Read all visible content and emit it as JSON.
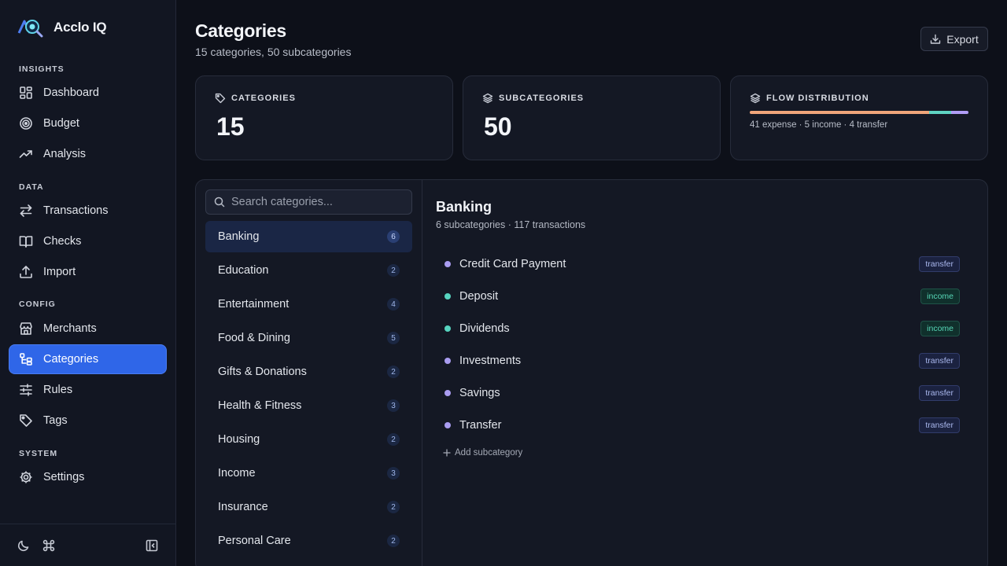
{
  "app": {
    "name": "Acclo IQ"
  },
  "sidebar": {
    "sections": [
      {
        "label": "INSIGHTS"
      },
      {
        "label": "DATA"
      },
      {
        "label": "CONFIG"
      },
      {
        "label": "SYSTEM"
      }
    ],
    "items": [
      {
        "label": "Dashboard",
        "icon": "dashboard-icon"
      },
      {
        "label": "Budget",
        "icon": "target-icon"
      },
      {
        "label": "Analysis",
        "icon": "trending-up-icon"
      },
      {
        "label": "Transactions",
        "icon": "arrows-swap-icon"
      },
      {
        "label": "Checks",
        "icon": "book-open-icon"
      },
      {
        "label": "Import",
        "icon": "upload-icon"
      },
      {
        "label": "Merchants",
        "icon": "store-icon"
      },
      {
        "label": "Categories",
        "icon": "category-tree-icon",
        "active": true
      },
      {
        "label": "Rules",
        "icon": "sliders-icon"
      },
      {
        "label": "Tags",
        "icon": "tag-icon"
      },
      {
        "label": "Settings",
        "icon": "gear-icon"
      }
    ],
    "footer": {
      "theme_icon": "moon-icon",
      "command_icon": "command-icon",
      "collapse_icon": "sidebar-collapse-icon"
    }
  },
  "header": {
    "title": "Categories",
    "subtitle": "15 categories, 50 subcategories",
    "export_label": "Export"
  },
  "stats": {
    "categories": {
      "label": "CATEGORIES",
      "value": "15"
    },
    "subcategories": {
      "label": "SUBCATEGORIES",
      "value": "50"
    },
    "flow": {
      "label": "FLOW DISTRIBUTION",
      "text": "41 expense · 5 income · 4 transfer",
      "segments": [
        {
          "name": "expense",
          "count": 41,
          "color": "#f0a57a"
        },
        {
          "name": "income",
          "count": 5,
          "color": "#5fd3c2"
        },
        {
          "name": "transfer",
          "count": 4,
          "color": "#b09cf5"
        }
      ]
    }
  },
  "search": {
    "placeholder": "Search categories..."
  },
  "category_list": [
    {
      "name": "Banking",
      "count": "6",
      "active": true
    },
    {
      "name": "Education",
      "count": "2"
    },
    {
      "name": "Entertainment",
      "count": "4"
    },
    {
      "name": "Food & Dining",
      "count": "5"
    },
    {
      "name": "Gifts & Donations",
      "count": "2"
    },
    {
      "name": "Health & Fitness",
      "count": "3"
    },
    {
      "name": "Housing",
      "count": "2"
    },
    {
      "name": "Income",
      "count": "3"
    },
    {
      "name": "Insurance",
      "count": "2"
    },
    {
      "name": "Personal Care",
      "count": "2"
    }
  ],
  "detail": {
    "title": "Banking",
    "meta": "6 subcategories · 117 transactions",
    "subcategories": [
      {
        "name": "Credit Card Payment",
        "type": "transfer"
      },
      {
        "name": "Deposit",
        "type": "income"
      },
      {
        "name": "Dividends",
        "type": "income"
      },
      {
        "name": "Investments",
        "type": "transfer"
      },
      {
        "name": "Savings",
        "type": "transfer"
      },
      {
        "name": "Transfer",
        "type": "transfer"
      }
    ],
    "add_label": "Add subcategory"
  },
  "colors": {
    "accent": "#2f66e8",
    "transfer_dot": "#a99cf0",
    "income_dot": "#57d4c0"
  }
}
